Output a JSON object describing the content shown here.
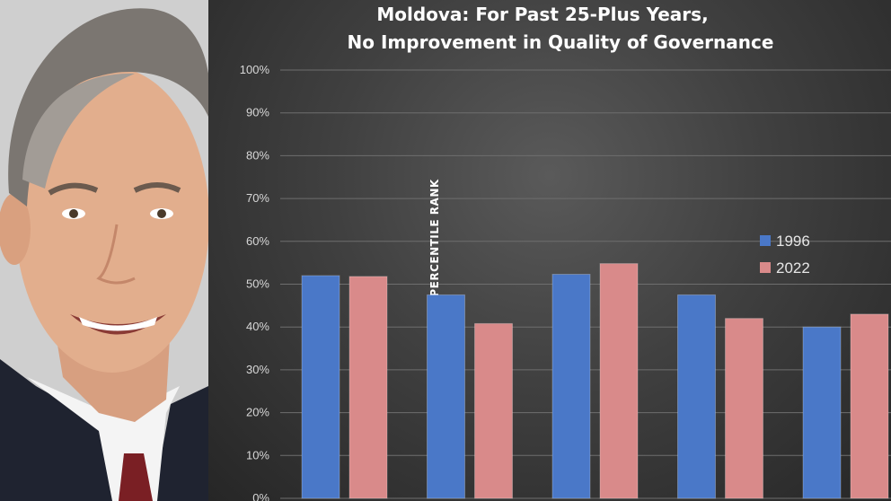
{
  "chart_data": {
    "type": "bar",
    "title_line1": "Moldova: For Past 25-Plus Years,",
    "title_line2": "No Improvement in Quality of Governance",
    "xlabel": "",
    "ylabel": "PERCENTILE RANK",
    "ylim": [
      0,
      100
    ],
    "yticks": [
      "0%",
      "10%",
      "20%",
      "30%",
      "40%",
      "50%",
      "60%",
      "70%",
      "80%",
      "90%",
      "100%"
    ],
    "grid": true,
    "legend_position": "right",
    "categories": [
      "",
      "",
      "",
      "",
      ""
    ],
    "series": [
      {
        "name": "1996",
        "color": "#4a78c8",
        "values": [
          52,
          47.5,
          52.3,
          47.5,
          40
        ]
      },
      {
        "name": "2022",
        "color": "#d98a8a",
        "values": [
          51.8,
          40.8,
          54.8,
          42,
          43
        ]
      }
    ]
  }
}
